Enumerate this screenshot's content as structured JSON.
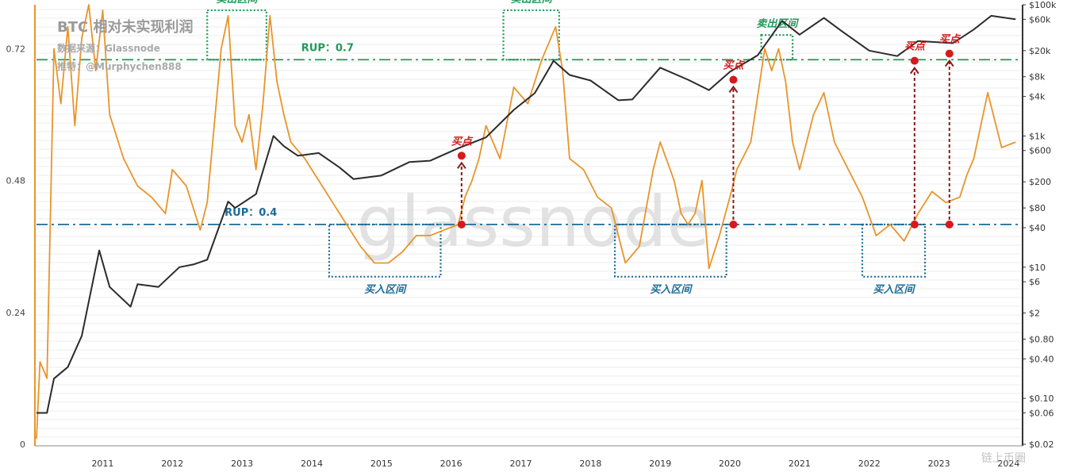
{
  "header": {
    "title": "BTC 相对未实现利润",
    "source": "数据来源：Glassnode",
    "twitter": "推特：@Murphychen888"
  },
  "watermark": "glassnode",
  "corner_watermark": "链上币圈",
  "colors": {
    "rup": "#e8952b",
    "price": "#2b2b2b",
    "sell_zone": "#1f9a5a",
    "buy_zone": "#1a6b96",
    "buy_point": "#d7191c",
    "arrow": "#8b1a1a"
  },
  "chart_data": {
    "type": "line",
    "x_axis": {
      "range": [
        2010.55,
        2024.7
      ],
      "ticks": [
        "2011",
        "2012",
        "2013",
        "2014",
        "2015",
        "2016",
        "2017",
        "2018",
        "2019",
        "2020",
        "2021",
        "2022",
        "2023",
        "2024"
      ]
    },
    "left_axis": {
      "range": [
        0,
        0.8
      ],
      "ticks": [
        "0",
        "0.24",
        "0.48",
        "0.72"
      ]
    },
    "right_axis": {
      "scale": "log",
      "range": [
        0.02,
        100000
      ],
      "ticks": [
        {
          "v": 100000,
          "label": "$100k"
        },
        {
          "v": 60000,
          "label": "$60k"
        },
        {
          "v": 20000,
          "label": "$20k"
        },
        {
          "v": 8000,
          "label": "$8k"
        },
        {
          "v": 4000,
          "label": "$4k"
        },
        {
          "v": 1000,
          "label": "$1k"
        },
        {
          "v": 600,
          "label": "$600"
        },
        {
          "v": 200,
          "label": "$200"
        },
        {
          "v": 80,
          "label": "$80"
        },
        {
          "v": 40,
          "label": "$40"
        },
        {
          "v": 10,
          "label": "$10"
        },
        {
          "v": 6,
          "label": "$6"
        },
        {
          "v": 2,
          "label": "$2"
        },
        {
          "v": 0.8,
          "label": "$0.80"
        },
        {
          "v": 0.4,
          "label": "$0.40"
        },
        {
          "v": 0.1,
          "label": "$0.10"
        },
        {
          "v": 0.06,
          "label": "$0.06"
        },
        {
          "v": 0.02,
          "label": "$0.02"
        }
      ]
    },
    "series": [
      {
        "key": "rup",
        "axis": "left",
        "points": [
          [
            2010.55,
            0.01
          ],
          [
            2010.6,
            0.15
          ],
          [
            2010.7,
            0.12
          ],
          [
            2010.8,
            0.72
          ],
          [
            2010.9,
            0.62
          ],
          [
            2011.0,
            0.76
          ],
          [
            2011.1,
            0.58
          ],
          [
            2011.2,
            0.74
          ],
          [
            2011.3,
            0.8
          ],
          [
            2011.4,
            0.68
          ],
          [
            2011.5,
            0.79
          ],
          [
            2011.6,
            0.6
          ],
          [
            2011.8,
            0.52
          ],
          [
            2012.0,
            0.47
          ],
          [
            2012.2,
            0.45
          ],
          [
            2012.4,
            0.42
          ],
          [
            2012.5,
            0.5
          ],
          [
            2012.7,
            0.47
          ],
          [
            2012.9,
            0.39
          ],
          [
            2013.0,
            0.44
          ],
          [
            2013.2,
            0.72
          ],
          [
            2013.3,
            0.78
          ],
          [
            2013.4,
            0.58
          ],
          [
            2013.5,
            0.55
          ],
          [
            2013.6,
            0.6
          ],
          [
            2013.7,
            0.5
          ],
          [
            2013.8,
            0.62
          ],
          [
            2013.9,
            0.78
          ],
          [
            2014.0,
            0.66
          ],
          [
            2014.1,
            0.6
          ],
          [
            2014.2,
            0.55
          ],
          [
            2014.4,
            0.52
          ],
          [
            2014.6,
            0.48
          ],
          [
            2014.8,
            0.44
          ],
          [
            2015.0,
            0.4
          ],
          [
            2015.2,
            0.36
          ],
          [
            2015.4,
            0.33
          ],
          [
            2015.6,
            0.33
          ],
          [
            2015.8,
            0.35
          ],
          [
            2016.0,
            0.38
          ],
          [
            2016.2,
            0.38
          ],
          [
            2016.4,
            0.39
          ],
          [
            2016.6,
            0.4
          ],
          [
            2016.7,
            0.45
          ],
          [
            2016.8,
            0.48
          ],
          [
            2016.9,
            0.52
          ],
          [
            2017.0,
            0.58
          ],
          [
            2017.2,
            0.52
          ],
          [
            2017.4,
            0.65
          ],
          [
            2017.6,
            0.62
          ],
          [
            2017.8,
            0.7
          ],
          [
            2018.0,
            0.76
          ],
          [
            2018.1,
            0.68
          ],
          [
            2018.2,
            0.52
          ],
          [
            2018.4,
            0.5
          ],
          [
            2018.6,
            0.45
          ],
          [
            2018.8,
            0.43
          ],
          [
            2018.9,
            0.38
          ],
          [
            2019.0,
            0.33
          ],
          [
            2019.2,
            0.36
          ],
          [
            2019.4,
            0.5
          ],
          [
            2019.5,
            0.55
          ],
          [
            2019.7,
            0.48
          ],
          [
            2019.8,
            0.42
          ],
          [
            2019.9,
            0.4
          ],
          [
            2020.0,
            0.42
          ],
          [
            2020.1,
            0.48
          ],
          [
            2020.2,
            0.32
          ],
          [
            2020.35,
            0.38
          ],
          [
            2020.5,
            0.45
          ],
          [
            2020.6,
            0.5
          ],
          [
            2020.8,
            0.55
          ],
          [
            2021.0,
            0.72
          ],
          [
            2021.1,
            0.68
          ],
          [
            2021.2,
            0.72
          ],
          [
            2021.3,
            0.66
          ],
          [
            2021.4,
            0.55
          ],
          [
            2021.5,
            0.5
          ],
          [
            2021.7,
            0.6
          ],
          [
            2021.85,
            0.64
          ],
          [
            2022.0,
            0.55
          ],
          [
            2022.2,
            0.5
          ],
          [
            2022.4,
            0.45
          ],
          [
            2022.6,
            0.38
          ],
          [
            2022.8,
            0.4
          ],
          [
            2023.0,
            0.37
          ],
          [
            2023.2,
            0.42
          ],
          [
            2023.4,
            0.46
          ],
          [
            2023.6,
            0.44
          ],
          [
            2023.8,
            0.45
          ],
          [
            2023.9,
            0.49
          ],
          [
            2024.0,
            0.52
          ],
          [
            2024.2,
            0.64
          ],
          [
            2024.4,
            0.54
          ],
          [
            2024.6,
            0.55
          ]
        ]
      },
      {
        "key": "price",
        "axis": "right",
        "points": [
          [
            2010.55,
            0.06
          ],
          [
            2010.7,
            0.06
          ],
          [
            2010.8,
            0.2
          ],
          [
            2011.0,
            0.3
          ],
          [
            2011.2,
            0.9
          ],
          [
            2011.45,
            18
          ],
          [
            2011.6,
            5
          ],
          [
            2011.9,
            2.5
          ],
          [
            2012.0,
            5.5
          ],
          [
            2012.3,
            5
          ],
          [
            2012.6,
            10
          ],
          [
            2012.8,
            11
          ],
          [
            2013.0,
            13
          ],
          [
            2013.3,
            100
          ],
          [
            2013.4,
            80
          ],
          [
            2013.7,
            130
          ],
          [
            2013.95,
            1000
          ],
          [
            2014.1,
            700
          ],
          [
            2014.3,
            500
          ],
          [
            2014.6,
            550
          ],
          [
            2014.9,
            330
          ],
          [
            2015.1,
            220
          ],
          [
            2015.5,
            250
          ],
          [
            2015.9,
            400
          ],
          [
            2016.2,
            420
          ],
          [
            2016.6,
            650
          ],
          [
            2017.0,
            950
          ],
          [
            2017.4,
            2500
          ],
          [
            2017.7,
            4500
          ],
          [
            2017.97,
            14000
          ],
          [
            2018.2,
            8500
          ],
          [
            2018.5,
            7000
          ],
          [
            2018.9,
            3500
          ],
          [
            2019.1,
            3600
          ],
          [
            2019.5,
            11000
          ],
          [
            2019.9,
            7200
          ],
          [
            2020.2,
            5000
          ],
          [
            2020.5,
            9500
          ],
          [
            2020.9,
            17000
          ],
          [
            2021.25,
            57000
          ],
          [
            2021.5,
            35000
          ],
          [
            2021.85,
            63000
          ],
          [
            2022.1,
            40000
          ],
          [
            2022.5,
            20000
          ],
          [
            2022.9,
            16500
          ],
          [
            2023.2,
            28000
          ],
          [
            2023.7,
            26000
          ],
          [
            2024.0,
            42000
          ],
          [
            2024.25,
            68000
          ],
          [
            2024.6,
            60000
          ]
        ]
      }
    ],
    "reference_lines": [
      {
        "y": 0.7,
        "label": "RUP：0.7",
        "color": "#1f9a5a"
      },
      {
        "y": 0.4,
        "label": "RUP：0.4",
        "color": "#1a6b96"
      }
    ],
    "annotations": {
      "sell_zones": [
        {
          "label": "卖出区间",
          "x": [
            2013.0,
            2013.85
          ],
          "y": [
            0.7,
            0.79
          ]
        },
        {
          "label": "卖出区间",
          "x": [
            2017.25,
            2018.05
          ],
          "y": [
            0.7,
            0.79
          ]
        },
        {
          "label": "卖出区间",
          "x": [
            2020.95,
            2021.4
          ],
          "y": [
            0.7,
            0.745
          ]
        }
      ],
      "buy_zones": [
        {
          "label": "买入区间",
          "x": [
            2014.75,
            2016.35
          ],
          "y": [
            0.305,
            0.4
          ]
        },
        {
          "label": "买入区间",
          "x": [
            2018.85,
            2020.45
          ],
          "y": [
            0.305,
            0.4
          ]
        },
        {
          "label": "买入区间",
          "x": [
            2022.4,
            2023.3
          ],
          "y": [
            0.305,
            0.4
          ]
        }
      ],
      "buy_points": [
        {
          "label": "买点",
          "x": 2016.65,
          "rup": 0.4,
          "price": 500
        },
        {
          "label": "买点",
          "x": 2020.55,
          "rup": 0.4,
          "price": 7200
        },
        {
          "label": "买点",
          "x": 2023.15,
          "rup": 0.4,
          "price": 14000
        },
        {
          "label": "买点",
          "x": 2023.65,
          "rup": 0.4,
          "price": 18000
        }
      ]
    }
  }
}
